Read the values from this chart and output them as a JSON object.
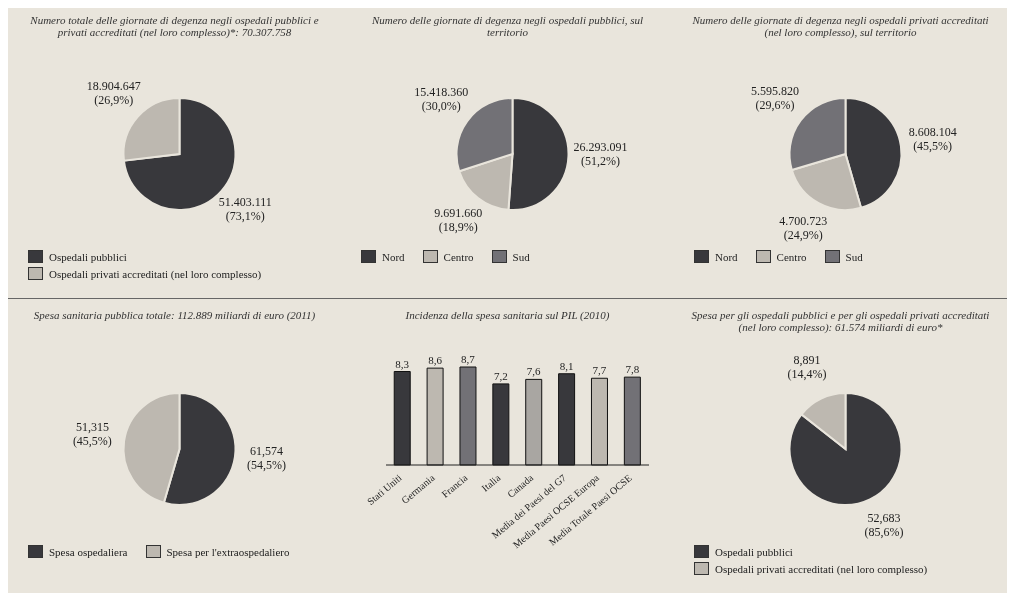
{
  "chart_data": [
    {
      "type": "pie",
      "title": "Numero totale delle giornate di degenza negli ospedali pubblici e privati accreditati (nel loro complesso)*: 70.307.758",
      "categories": [
        "Ospedali pubblici",
        "Ospedali privati accreditati (nel loro complesso)"
      ],
      "values": [
        51403111,
        18904647
      ],
      "colors": [
        "#38383c",
        "#bdb8b0"
      ],
      "value_labels": [
        "51.403.111\n(73,1%)",
        "18.904.647\n(26,9%)"
      ],
      "legend": "bottom"
    },
    {
      "type": "pie",
      "title": "Numero delle giornate di degenza negli ospedali pubblici, sul territorio",
      "categories": [
        "Nord",
        "Centro",
        "Sud"
      ],
      "values": [
        26293091,
        9691660,
        15418360
      ],
      "colors": [
        "#38383c",
        "#bdb8b0",
        "#727176"
      ],
      "value_labels": [
        "26.293.091\n(51,2%)",
        "9.691.660\n(18,9%)",
        "15.418.360\n(30,0%)"
      ],
      "legend": "bottom"
    },
    {
      "type": "pie",
      "title": "Numero delle giornate di degenza negli ospedali privati accreditati (nel loro complesso), sul territorio",
      "categories": [
        "Nord",
        "Centro",
        "Sud"
      ],
      "values": [
        8608104,
        4700723,
        5595820
      ],
      "colors": [
        "#38383c",
        "#bdb8b0",
        "#727176"
      ],
      "value_labels": [
        "8.608.104\n(45,5%)",
        "4.700.723\n(24,9%)",
        "5.595.820\n(29,6%)"
      ],
      "legend": "bottom"
    },
    {
      "type": "pie",
      "title": "Spesa sanitaria pubblica totale: 112.889 miliardi di euro (2011)",
      "categories": [
        "Spesa ospedaliera",
        "Spesa per l'extraospedaliero"
      ],
      "values": [
        54.5,
        45.5
      ],
      "colors": [
        "#38383c",
        "#bdb8b0"
      ],
      "value_labels": [
        "61,574\n(54,5%)",
        "51,315\n(45,5%)"
      ],
      "legend": "bottom"
    },
    {
      "type": "bar",
      "title": "Incidenza della spesa sanitaria sul PIL (2010)",
      "categories": [
        "Stati Uniti",
        "Germania",
        "Francia",
        "Italia",
        "Canada",
        "Media dei Paesi del G7",
        "Media Paesi OCSE Europa",
        "Media Totale Paesi OCSE"
      ],
      "values": [
        8.3,
        8.6,
        8.7,
        7.2,
        7.6,
        8.1,
        7.7,
        7.8
      ],
      "colors": [
        "#38383c",
        "#bdb8b0",
        "#727176",
        "#38383c",
        "#a9a6a2",
        "#38383c",
        "#bdb8b0",
        "#727176"
      ],
      "value_labels": [
        "8,3",
        "8,6",
        "8,7",
        "7,2",
        "7,6",
        "8,1",
        "7,7",
        "7,8"
      ]
    },
    {
      "type": "pie",
      "title": "Spesa per gli ospedali pubblici e per gli ospedali privati accreditati (nel loro complesso): 61.574 miliardi di euro*",
      "categories": [
        "Ospedali pubblici",
        "Ospedali privati accreditati (nel loro complesso)"
      ],
      "values": [
        85.6,
        14.4
      ],
      "colors": [
        "#38383c",
        "#bdb8b0"
      ],
      "value_labels": [
        "52,683\n(85,6%)",
        "8,891\n(14,4%)"
      ],
      "legend": "bottom"
    }
  ]
}
